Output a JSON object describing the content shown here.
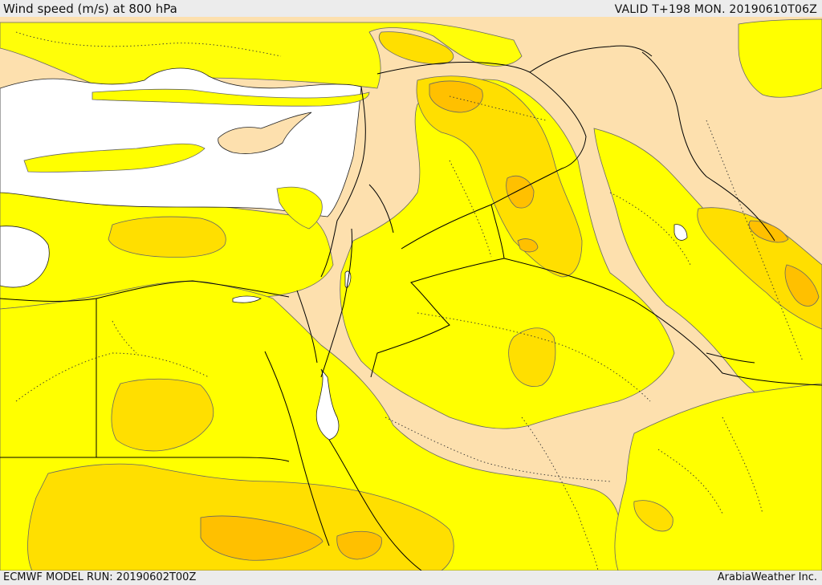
{
  "header": {
    "title": "Wind speed (m/s) at 800 hPa",
    "valid_time": "VALID T+198 MON. 20190610T06Z"
  },
  "footer": {
    "model_run": "ECMWF MODEL RUN: 20190602T00Z",
    "credit": "ArabiaWeather Inc."
  },
  "colors": {
    "sea": "#ffffff",
    "speed_low": "#fde0ae",
    "speed_mid": "#ffff00",
    "speed_high": "#ffdf00",
    "speed_very_high": "#ffc000",
    "border": "#000000",
    "contour": "#666666"
  }
}
